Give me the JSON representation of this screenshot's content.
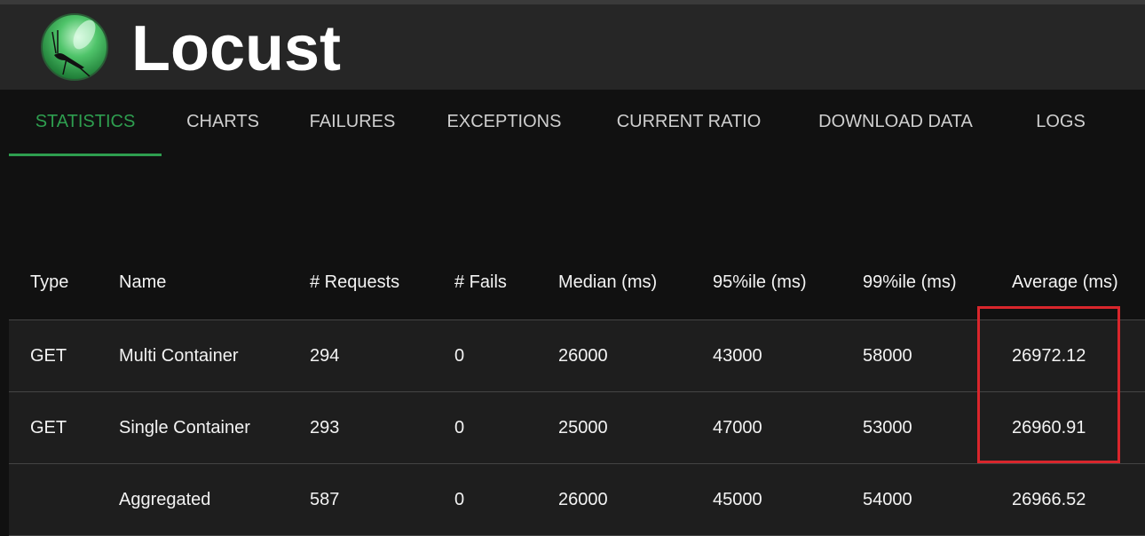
{
  "app": {
    "title": "Locust",
    "accent": "#2e9e4f",
    "highlight_color": "#d9262c",
    "logo_icon": "locust-logo-icon"
  },
  "nav": {
    "tabs": [
      {
        "label": "STATISTICS",
        "active": true
      },
      {
        "label": "CHARTS"
      },
      {
        "label": "FAILURES"
      },
      {
        "label": "EXCEPTIONS"
      },
      {
        "label": "CURRENT RATIO"
      },
      {
        "label": "DOWNLOAD DATA"
      },
      {
        "label": "LOGS"
      }
    ]
  },
  "table": {
    "headers": [
      "Type",
      "Name",
      "# Requests",
      "# Fails",
      "Median (ms)",
      "95%ile (ms)",
      "99%ile (ms)",
      "Average (ms)"
    ],
    "rows": [
      [
        "GET",
        "Multi Container",
        "294",
        "0",
        "26000",
        "43000",
        "58000",
        "26972.12"
      ],
      [
        "GET",
        "Single Container",
        "293",
        "0",
        "25000",
        "47000",
        "53000",
        "26960.91"
      ],
      [
        "",
        "Aggregated",
        "587",
        "0",
        "26000",
        "45000",
        "54000",
        "26966.52"
      ]
    ]
  }
}
